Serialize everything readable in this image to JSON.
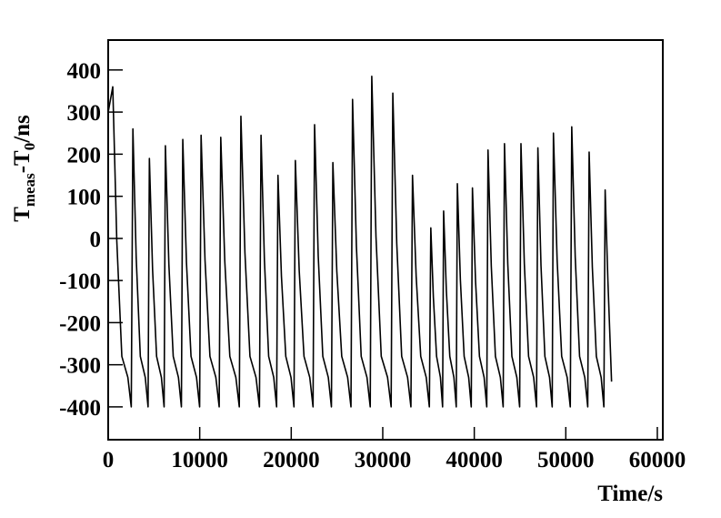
{
  "chart_data": {
    "type": "line",
    "xlabel": "Time/s",
    "ylabel": [
      {
        "text": "T"
      },
      {
        "text": "meas",
        "sub": true
      },
      {
        "text": "-T"
      },
      {
        "text": "0",
        "sub": true
      },
      {
        "text": "/ns"
      }
    ],
    "xlim": [
      0,
      60600
    ],
    "ylim": [
      -478,
      471
    ],
    "xticks": [
      0,
      10000,
      20000,
      30000,
      40000,
      50000,
      60000
    ],
    "yticks": [
      -400,
      -300,
      -200,
      -100,
      0,
      100,
      200,
      300,
      400
    ],
    "x": [
      0,
      500,
      940,
      1490,
      2150,
      2520,
      2700,
      3060,
      3510,
      4050,
      4356,
      4500,
      4850,
      5288,
      5813,
      6110,
      6250,
      6630,
      7105,
      7675,
      7998,
      8150,
      8550,
      9050,
      9650,
      9990,
      10150,
      10580,
      11118,
      11763,
      12128,
      12300,
      12740,
      13290,
      13950,
      14324,
      14500,
      14940,
      15490,
      16150,
      16524,
      16700,
      17070,
      17533,
      18088,
      18402,
      18550,
      18930,
      19405,
      19975,
      20298,
      20450,
      20870,
      21395,
      22025,
      22382,
      22550,
      22950,
      23450,
      24050,
      24390,
      24550,
      24980,
      25518,
      26163,
      26528,
      26700,
      27120,
      27645,
      28275,
      28632,
      28800,
      29260,
      29835,
      30525,
      30916,
      31100,
      31530,
      32068,
      32713,
      33078,
      33250,
      33650,
      34150,
      34750,
      35090,
      35250,
      35530,
      35880,
      36300,
      36538,
      36650,
      36950,
      37325,
      37775,
      38030,
      38150,
      38480,
      38893,
      39388,
      39668,
      39800,
      40140,
      40565,
      41075,
      41364,
      41500,
      41860,
      42310,
      42850,
      43156,
      43300,
      43660,
      44110,
      44650,
      44956,
      45100,
      45470,
      45933,
      46488,
      46802,
      46950,
      47290,
      47715,
      48225,
      48514,
      48650,
      49050,
      49550,
      50150,
      50490,
      50650,
      51030,
      51505,
      52075,
      52398,
      52550,
      52900,
      53338,
      53863,
      54160,
      54300,
      54600,
      55000
    ],
    "series": [
      {
        "color": "#000000",
        "values": [
          300,
          360,
          -6,
          -280,
          -330,
          -400,
          260,
          -46,
          -280,
          -330,
          -400,
          190,
          -74,
          -280,
          -330,
          -400,
          220,
          -62,
          -280,
          -330,
          -400,
          235,
          -56,
          -280,
          -330,
          -400,
          245,
          -52,
          -280,
          -330,
          -400,
          240,
          -54,
          -280,
          -330,
          -400,
          290,
          -34,
          -280,
          -330,
          -400,
          245,
          -52,
          -280,
          -330,
          -400,
          150,
          -90,
          -280,
          -330,
          -400,
          185,
          -76,
          -280,
          -330,
          -400,
          270,
          -42,
          -280,
          -330,
          -400,
          180,
          -78,
          -280,
          -330,
          -400,
          330,
          -18,
          -280,
          -330,
          -400,
          385,
          4,
          -280,
          -330,
          -400,
          345,
          -12,
          -280,
          -330,
          -400,
          150,
          -90,
          -280,
          -330,
          -400,
          25,
          -140,
          -280,
          -330,
          -400,
          65,
          -124,
          -280,
          -330,
          -400,
          130,
          -98,
          -280,
          -330,
          -400,
          120,
          -102,
          -280,
          -330,
          -400,
          210,
          -66,
          -280,
          -330,
          -400,
          225,
          -60,
          -280,
          -330,
          -400,
          225,
          -60,
          -280,
          -330,
          -400,
          215,
          -64,
          -280,
          -330,
          -400,
          250,
          -50,
          -280,
          -330,
          -400,
          265,
          -44,
          -280,
          -330,
          -400,
          205,
          -68,
          -280,
          -330,
          -400,
          115,
          -100,
          -340
        ]
      }
    ]
  }
}
